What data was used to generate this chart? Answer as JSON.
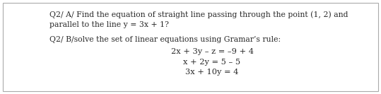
{
  "background_color": "#ffffff",
  "border_color": "#aaaaaa",
  "line1": "Q2/ A/ Find the equation of straight line passing through the point (1, 2) and",
  "line2": "parallel to the line y = 3x + 1?",
  "line3": "Q2/ B/solve the set of linear equations using Gramar’s rule:",
  "eq1": "2x + 3y – z = –9 + 4",
  "eq2": "x + 2y = 5 – 5",
  "eq3": "3x + 10y = 4",
  "font_size_text": 7.8,
  "font_size_eq": 8.2,
  "text_color": "#2a2a2a",
  "font_family": "serif"
}
